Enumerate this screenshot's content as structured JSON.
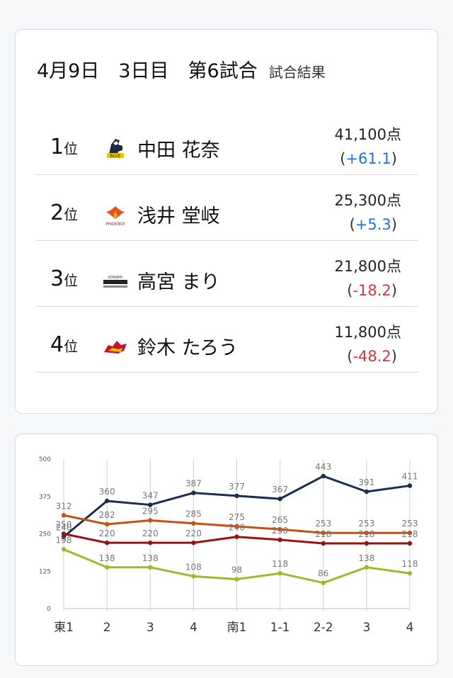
{
  "header": {
    "title": "4月9日　3日目　第6試合",
    "subtitle": "試合結果"
  },
  "results": [
    {
      "rank": "1",
      "rank_suffix": "位",
      "team_logo": "horse-logo",
      "name": "中田 花奈",
      "score": "41,100点",
      "paren_open": "(",
      "delta": "+61.1",
      "paren_close": ")",
      "sign": "pos"
    },
    {
      "rank": "2",
      "rank_suffix": "位",
      "team_logo": "phoenix-logo",
      "name": "浅井 堂岐",
      "score": "25,300点",
      "paren_open": "(",
      "delta": "+5.3",
      "paren_close": ")",
      "sign": "pos"
    },
    {
      "rank": "3",
      "rank_suffix": "位",
      "team_logo": "konami-logo",
      "name": "高宮 まり",
      "score": "21,800点",
      "paren_open": "(",
      "delta": "-18.2",
      "paren_close": ")",
      "sign": "neg"
    },
    {
      "rank": "4",
      "rank_suffix": "位",
      "team_logo": "dragon-logo",
      "name": "鈴木 たろう",
      "score": "11,800点",
      "paren_open": "(",
      "delta": "-48.2",
      "paren_close": ")",
      "sign": "neg"
    }
  ],
  "colors": {
    "positive": "#1a73e8",
    "negative": "#d93643"
  },
  "chart_data": {
    "type": "line",
    "categories": [
      "東1",
      "2",
      "3",
      "4",
      "南1",
      "1-1",
      "2-2",
      "3",
      "4"
    ],
    "ylim": [
      0,
      500
    ],
    "yticks": [
      "0",
      "125",
      "250",
      "375",
      "500"
    ],
    "grid": false,
    "series": [
      {
        "color": "#1b2d55",
        "values": [
          240,
          360,
          347,
          387,
          377,
          367,
          443,
          391,
          411
        ]
      },
      {
        "color": "#c8500d",
        "values": [
          312,
          282,
          295,
          285,
          275,
          265,
          253,
          253,
          253
        ]
      },
      {
        "color": "#9a1010",
        "values": [
          250,
          220,
          220,
          220,
          240,
          230,
          218,
          218,
          218
        ]
      },
      {
        "color": "#9dba2b",
        "values": [
          198,
          138,
          138,
          108,
          98,
          118,
          86,
          138,
          118
        ]
      }
    ]
  }
}
